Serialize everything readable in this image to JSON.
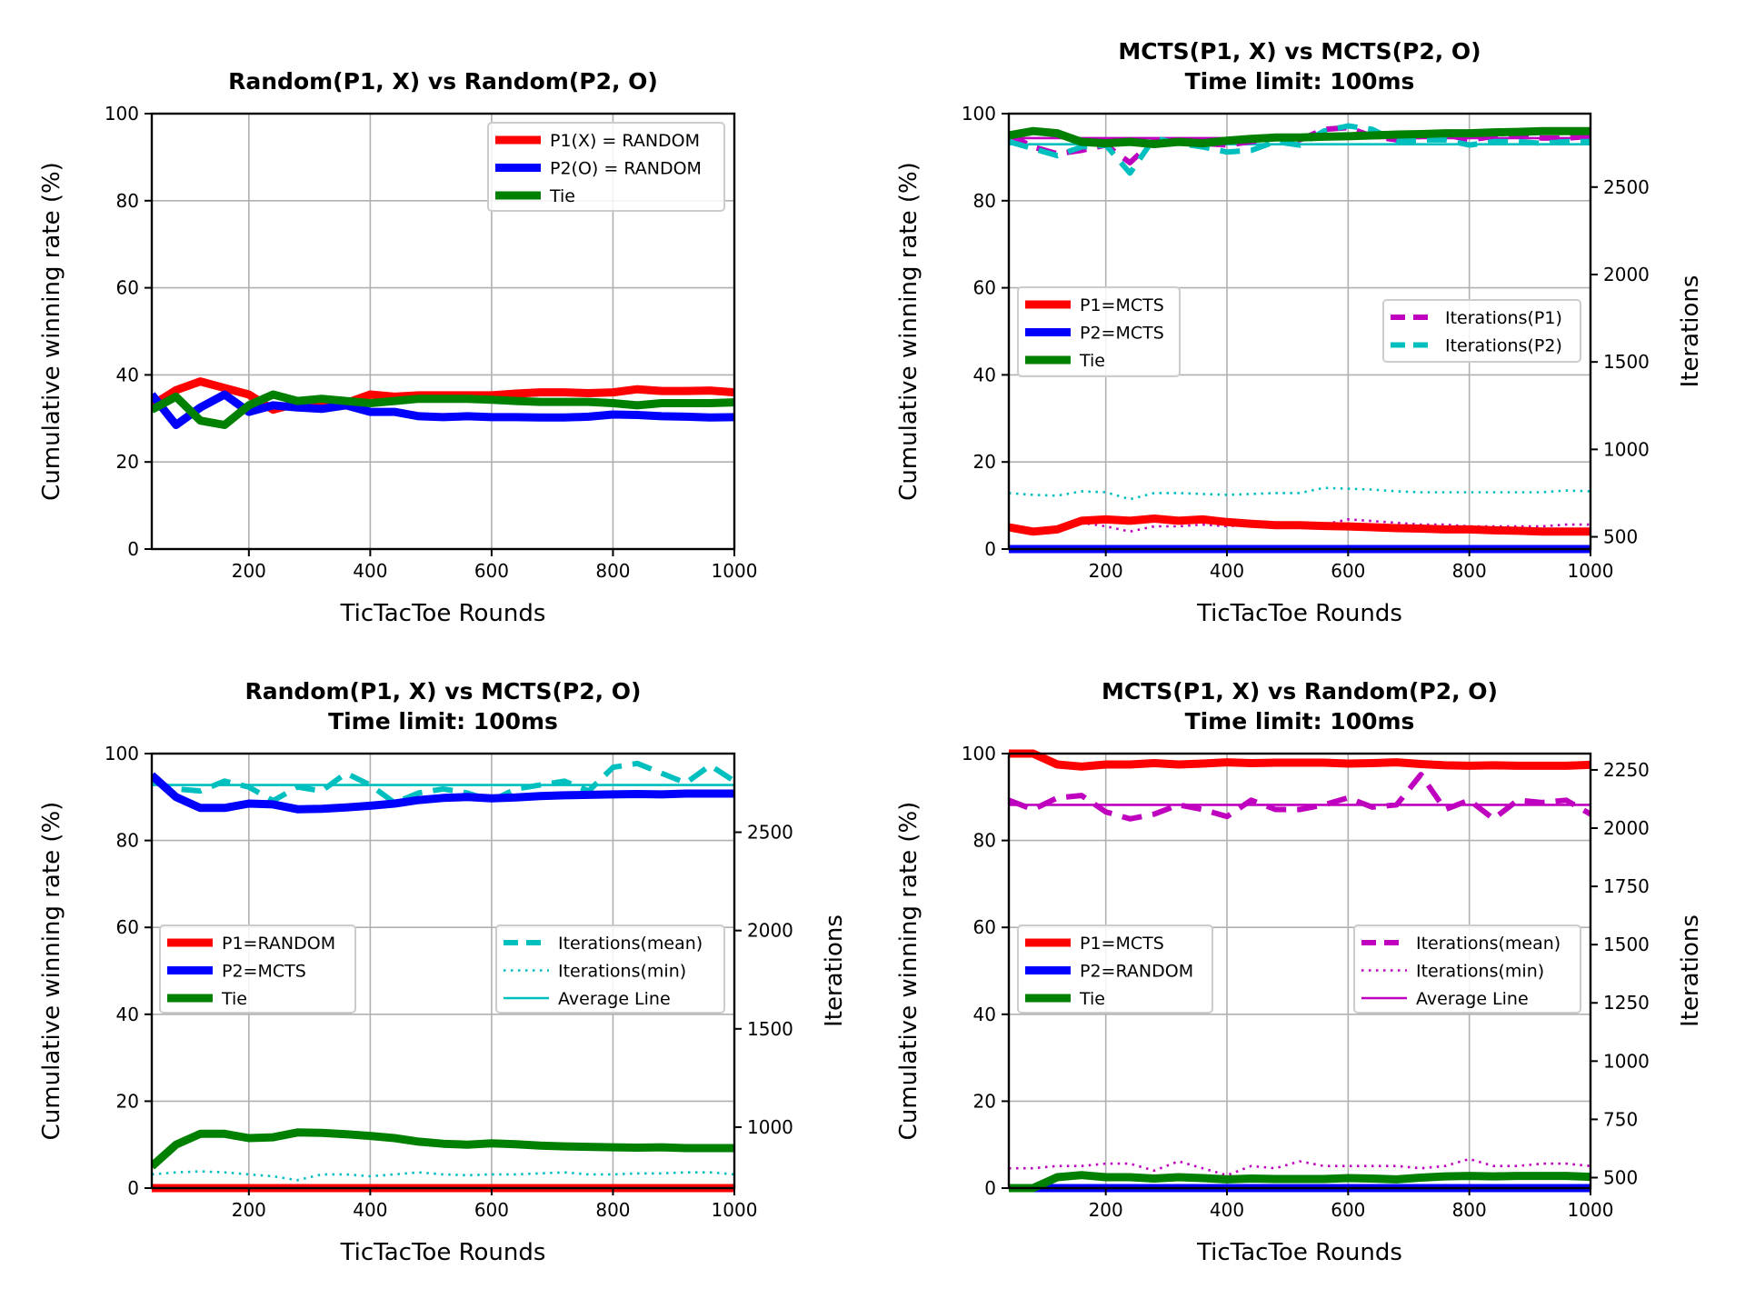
{
  "chart_data": [
    {
      "type": "line",
      "title": [
        "Random(P1, X) vs Random(P2, O)"
      ],
      "xlabel": "TicTacToe Rounds",
      "ylabel": "Cumulative winning rate (%)",
      "xlim": [
        40,
        1000
      ],
      "ylim": [
        0,
        100
      ],
      "xticks": [
        200,
        400,
        600,
        800,
        1000
      ],
      "yticks": [
        0,
        20,
        40,
        60,
        80,
        100
      ],
      "grid": true,
      "x": [
        40,
        80,
        120,
        160,
        200,
        240,
        280,
        320,
        360,
        400,
        440,
        480,
        520,
        560,
        600,
        640,
        680,
        720,
        760,
        800,
        840,
        880,
        920,
        960,
        1000
      ],
      "series": [
        {
          "name": "P1(X) = RANDOM",
          "color": "#ff0000",
          "values": [
            33,
            36.5,
            38.5,
            37,
            35.5,
            32,
            33.5,
            33.5,
            33.5,
            35.5,
            35,
            35.3,
            35.3,
            35.3,
            35.3,
            35.7,
            36,
            36,
            35.8,
            36,
            36.7,
            36.3,
            36.3,
            36.4,
            36
          ]
        },
        {
          "name": "P2(O) = RANDOM",
          "color": "#0000ff",
          "values": [
            35.5,
            28.5,
            32.5,
            35.5,
            31.5,
            33,
            32.5,
            32.2,
            33,
            31.5,
            31.5,
            30.5,
            30.3,
            30.5,
            30.3,
            30.3,
            30.2,
            30.2,
            30.4,
            30.9,
            30.8,
            30.5,
            30.4,
            30.2,
            30.3
          ]
        },
        {
          "name": "Tie",
          "color": "#008000",
          "values": [
            32,
            35,
            29.5,
            28.5,
            33,
            35.5,
            34,
            34.5,
            34,
            33.5,
            34,
            34.5,
            34.5,
            34.5,
            34.3,
            34,
            33.8,
            33.8,
            33.8,
            33.5,
            33,
            33.5,
            33.5,
            33.5,
            33.7
          ]
        }
      ],
      "legend": {
        "placement": "upper-right",
        "entries": [
          "P1(X) = RANDOM",
          "P2(O) = RANDOM",
          "Tie"
        ]
      }
    },
    {
      "type": "line",
      "title": [
        "MCTS(P1, X) vs MCTS(P2, O)",
        "Time limit: 100ms"
      ],
      "xlabel": "TicTacToe Rounds",
      "ylabel": "Cumulative winning rate (%)",
      "y2label": "Iterations",
      "xlim": [
        40,
        1000
      ],
      "ylim": [
        0,
        100
      ],
      "y2lim": [
        430,
        2920
      ],
      "xticks": [
        200,
        400,
        600,
        800,
        1000
      ],
      "yticks": [
        0,
        20,
        40,
        60,
        80,
        100
      ],
      "y2ticks": [
        500,
        1000,
        1500,
        2000,
        2500
      ],
      "grid": true,
      "x": [
        40,
        80,
        120,
        160,
        200,
        240,
        280,
        320,
        360,
        400,
        440,
        480,
        520,
        560,
        600,
        640,
        680,
        720,
        760,
        800,
        840,
        880,
        920,
        960,
        1000
      ],
      "series": [
        {
          "name": "P1=MCTS",
          "color": "#ff0000",
          "values": [
            5,
            4,
            4.5,
            6.5,
            6.8,
            6.5,
            7,
            6.5,
            6.8,
            6.2,
            5.8,
            5.5,
            5.5,
            5.3,
            5.2,
            5,
            4.8,
            4.7,
            4.5,
            4.5,
            4.3,
            4.2,
            4,
            4,
            4
          ]
        },
        {
          "name": "P2=MCTS",
          "color": "#0000ff",
          "values": [
            0,
            0,
            0,
            0,
            0,
            0,
            0,
            0,
            0,
            0,
            0,
            0,
            0,
            0,
            0,
            0,
            0,
            0,
            0,
            0,
            0,
            0,
            0,
            0,
            0
          ]
        },
        {
          "name": "Tie",
          "color": "#008000",
          "values": [
            95,
            96,
            95.5,
            93.5,
            93.2,
            93.5,
            93,
            93.5,
            93.2,
            93.8,
            94.2,
            94.5,
            94.5,
            94.7,
            94.8,
            95,
            95.2,
            95.3,
            95.5,
            95.5,
            95.7,
            95.8,
            96,
            96,
            96
          ]
        }
      ],
      "series_y2": [
        {
          "name": "Iterations(P1)",
          "color": "#bf00bf",
          "style": "dashed",
          "values": [
            2800,
            2730,
            2690,
            2710,
            2740,
            2640,
            2770,
            2760,
            2750,
            2740,
            2760,
            2780,
            2770,
            2830,
            2840,
            2790,
            2770,
            2790,
            2800,
            2770,
            2790,
            2800,
            2780,
            2780,
            2790
          ]
        },
        {
          "name": "Iterations(P2)",
          "color": "#00bfbf",
          "style": "dashed",
          "values": [
            2760,
            2720,
            2680,
            2730,
            2740,
            2580,
            2780,
            2750,
            2730,
            2700,
            2710,
            2760,
            2740,
            2820,
            2850,
            2830,
            2760,
            2770,
            2770,
            2740,
            2760,
            2760,
            2750,
            2760,
            2760
          ]
        }
      ],
      "series_y2_unlabeled": [
        {
          "color": "#bf00bf",
          "style": "solid-thin",
          "values": [
            2780,
            2780
          ]
        },
        {
          "color": "#00bfbf",
          "style": "solid-thin",
          "values": [
            2745,
            2745
          ]
        },
        {
          "color": "#bf00bf",
          "style": "dotted",
          "values": [
            540,
            530,
            540,
            580,
            560,
            530,
            560,
            560,
            570,
            560,
            570,
            560,
            560,
            570,
            600,
            590,
            580,
            570,
            570,
            560,
            560,
            560,
            560,
            570,
            570
          ]
        },
        {
          "color": "#00bfbf",
          "style": "dotted",
          "values": [
            750,
            740,
            735,
            760,
            755,
            715,
            750,
            750,
            745,
            740,
            745,
            750,
            750,
            780,
            775,
            770,
            760,
            755,
            755,
            755,
            755,
            755,
            755,
            765,
            760
          ]
        }
      ],
      "legend": {
        "placement": "center-left",
        "entries": [
          "P1=MCTS",
          "P2=MCTS",
          "Tie"
        ]
      },
      "legend2": {
        "placement": "center-right",
        "entries": [
          "Iterations(P1)",
          "Iterations(P2)"
        ]
      }
    },
    {
      "type": "line",
      "title": [
        "Random(P1, X) vs MCTS(P2, O)",
        "Time limit: 100ms"
      ],
      "xlabel": "TicTacToe Rounds",
      "ylabel": "Cumulative winning rate (%)",
      "y2label": "Iterations",
      "xlim": [
        40,
        1000
      ],
      "ylim": [
        0,
        100
      ],
      "y2lim": [
        690,
        2900
      ],
      "xticks": [
        200,
        400,
        600,
        800,
        1000
      ],
      "yticks": [
        0,
        20,
        40,
        60,
        80,
        100
      ],
      "y2ticks": [
        1000,
        1500,
        2000,
        2500
      ],
      "grid": true,
      "x": [
        40,
        80,
        120,
        160,
        200,
        240,
        280,
        320,
        360,
        400,
        440,
        480,
        520,
        560,
        600,
        640,
        680,
        720,
        760,
        800,
        840,
        880,
        920,
        960,
        1000
      ],
      "series": [
        {
          "name": "P1=RANDOM",
          "color": "#ff0000",
          "values": [
            0,
            0,
            0,
            0,
            0,
            0,
            0,
            0,
            0,
            0,
            0,
            0,
            0,
            0,
            0,
            0,
            0,
            0,
            0,
            0,
            0,
            0,
            0,
            0,
            0
          ]
        },
        {
          "name": "P2=MCTS",
          "color": "#0000ff",
          "values": [
            95,
            90,
            87.5,
            87.5,
            88.5,
            88.3,
            87.2,
            87.3,
            87.6,
            88,
            88.5,
            89.3,
            89.8,
            90,
            89.7,
            89.9,
            90.2,
            90.4,
            90.5,
            90.6,
            90.7,
            90.6,
            90.8,
            90.8,
            90.8
          ]
        },
        {
          "name": "Tie",
          "color": "#008000",
          "values": [
            5,
            10,
            12.5,
            12.5,
            11.5,
            11.7,
            12.8,
            12.7,
            12.4,
            12,
            11.5,
            10.7,
            10.2,
            10,
            10.3,
            10.1,
            9.8,
            9.6,
            9.5,
            9.4,
            9.3,
            9.4,
            9.2,
            9.2,
            9.2
          ]
        }
      ],
      "series_y2": [
        {
          "name": "Iterations(mean)",
          "color": "#00bfbf",
          "style": "dashed",
          "values": [
            2760,
            2720,
            2710,
            2760,
            2730,
            2660,
            2730,
            2710,
            2800,
            2740,
            2650,
            2700,
            2720,
            2700,
            2660,
            2720,
            2740,
            2760,
            2710,
            2830,
            2850,
            2800,
            2750,
            2840,
            2760
          ]
        },
        {
          "name": "Iterations(min)",
          "color": "#00bfbf",
          "style": "dotted",
          "values": [
            760,
            770,
            775,
            770,
            760,
            750,
            730,
            760,
            760,
            750,
            760,
            770,
            760,
            755,
            760,
            760,
            765,
            770,
            760,
            760,
            765,
            765,
            770,
            770,
            760
          ]
        },
        {
          "name": "Average Line",
          "color": "#00bfbf",
          "style": "solid-thin",
          "values": [
            2740,
            2740
          ]
        }
      ],
      "legend": {
        "placement": "center-left",
        "entries": [
          "P1=RANDOM",
          "P2=MCTS",
          "Tie"
        ]
      },
      "legend2": {
        "placement": "center-right",
        "entries": [
          "Iterations(mean)",
          "Iterations(min)",
          "Average Line"
        ]
      }
    },
    {
      "type": "line",
      "title": [
        "MCTS(P1, X) vs Random(P2, O)",
        "Time limit: 100ms"
      ],
      "xlabel": "TicTacToe Rounds",
      "ylabel": "Cumulative winning rate (%)",
      "y2label": "Iterations",
      "xlim": [
        40,
        1000
      ],
      "ylim": [
        0,
        100
      ],
      "y2lim": [
        455,
        2320
      ],
      "xticks": [
        200,
        400,
        600,
        800,
        1000
      ],
      "yticks": [
        0,
        20,
        40,
        60,
        80,
        100
      ],
      "y2ticks": [
        500,
        750,
        1000,
        1250,
        1500,
        1750,
        2000,
        2250
      ],
      "grid": true,
      "x": [
        40,
        80,
        120,
        160,
        200,
        240,
        280,
        320,
        360,
        400,
        440,
        480,
        520,
        560,
        600,
        640,
        680,
        720,
        760,
        800,
        840,
        880,
        920,
        960,
        1000
      ],
      "series": [
        {
          "name": "P1=MCTS",
          "color": "#ff0000",
          "values": [
            100,
            100,
            97.5,
            97,
            97.5,
            97.5,
            97.8,
            97.5,
            97.7,
            98,
            97.8,
            97.9,
            97.9,
            97.9,
            97.7,
            97.8,
            98,
            97.6,
            97.3,
            97.2,
            97.3,
            97.2,
            97.2,
            97.2,
            97.4
          ]
        },
        {
          "name": "P2=RANDOM",
          "color": "#0000ff",
          "values": [
            0,
            0,
            0,
            0,
            0,
            0,
            0,
            0,
            0,
            0,
            0,
            0,
            0,
            0,
            0,
            0,
            0,
            0,
            0,
            0,
            0,
            0,
            0,
            0,
            0
          ]
        },
        {
          "name": "Tie",
          "color": "#008000",
          "values": [
            0,
            0,
            2.5,
            3,
            2.5,
            2.5,
            2.2,
            2.5,
            2.3,
            2,
            2.2,
            2.1,
            2.1,
            2.1,
            2.3,
            2.2,
            2,
            2.4,
            2.7,
            2.8,
            2.7,
            2.8,
            2.8,
            2.8,
            2.6
          ]
        }
      ],
      "series_y2": [
        {
          "name": "Iterations(mean)",
          "color": "#bf00bf",
          "style": "dashed",
          "values": [
            2120,
            2080,
            2130,
            2140,
            2070,
            2040,
            2060,
            2100,
            2080,
            2050,
            2120,
            2080,
            2080,
            2100,
            2130,
            2090,
            2100,
            2230,
            2080,
            2120,
            2040,
            2120,
            2110,
            2120,
            2060
          ]
        },
        {
          "name": "Iterations(min)",
          "color": "#bf00bf",
          "style": "dotted",
          "values": [
            540,
            540,
            550,
            550,
            560,
            560,
            530,
            570,
            540,
            510,
            550,
            540,
            570,
            550,
            550,
            550,
            550,
            540,
            550,
            580,
            550,
            550,
            560,
            560,
            550
          ]
        },
        {
          "name": "Average Line",
          "color": "#bf00bf",
          "style": "solid-thin",
          "values": [
            2100,
            2100
          ]
        }
      ],
      "legend": {
        "placement": "center-left",
        "entries": [
          "P1=MCTS",
          "P2=RANDOM",
          "Tie"
        ]
      },
      "legend2": {
        "placement": "center-right",
        "entries": [
          "Iterations(mean)",
          "Iterations(min)",
          "Average Line"
        ]
      }
    }
  ]
}
